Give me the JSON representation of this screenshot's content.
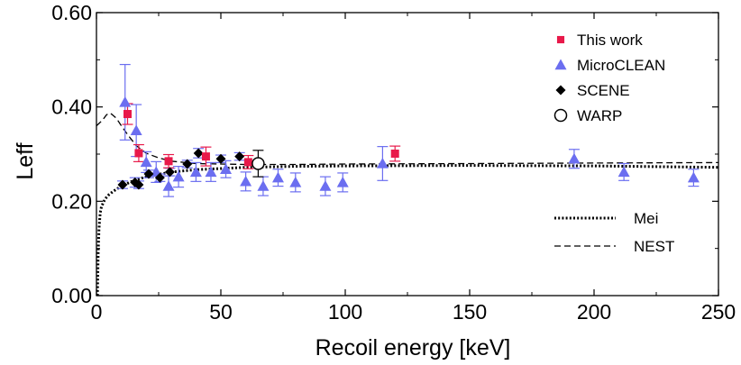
{
  "chart_data": {
    "type": "scatter",
    "title": "",
    "xlabel": "Recoil energy [keV]",
    "ylabel": "Leff",
    "xlim": [
      0,
      250
    ],
    "ylim": [
      0,
      0.6
    ],
    "x_ticks": [
      "0",
      "50",
      "100",
      "150",
      "200",
      "250"
    ],
    "y_ticks": [
      "0.00",
      "0.20",
      "0.40",
      "0.60"
    ],
    "grid": false,
    "legend_position": "top-right",
    "series": [
      {
        "name": "This work",
        "marker": "square",
        "color": "#e8194a",
        "error_color": "#e8194a",
        "points": [
          {
            "x": 12.5,
            "y": 0.385,
            "err": 0.022
          },
          {
            "x": 17.0,
            "y": 0.302,
            "err": 0.018
          },
          {
            "x": 29.0,
            "y": 0.285,
            "err": 0.014
          },
          {
            "x": 44.0,
            "y": 0.295,
            "err": 0.02
          },
          {
            "x": 61.0,
            "y": 0.283,
            "err": 0.014
          },
          {
            "x": 120.0,
            "y": 0.301,
            "err": 0.016
          }
        ]
      },
      {
        "name": "MicroCLEAN",
        "marker": "triangle",
        "color": "#6b6ef0",
        "error_color": "#6b6ef0",
        "points": [
          {
            "x": 11.5,
            "y": 0.41,
            "err": 0.08
          },
          {
            "x": 16.0,
            "y": 0.35,
            "err": 0.055
          },
          {
            "x": 20.0,
            "y": 0.283,
            "err": 0.022
          },
          {
            "x": 24.0,
            "y": 0.262,
            "err": 0.022
          },
          {
            "x": 29.0,
            "y": 0.232,
            "err": 0.022
          },
          {
            "x": 33.0,
            "y": 0.252,
            "err": 0.022
          },
          {
            "x": 40.0,
            "y": 0.262,
            "err": 0.02
          },
          {
            "x": 46.0,
            "y": 0.262,
            "err": 0.02
          },
          {
            "x": 52.0,
            "y": 0.268,
            "err": 0.018
          },
          {
            "x": 60.0,
            "y": 0.242,
            "err": 0.02
          },
          {
            "x": 67.0,
            "y": 0.232,
            "err": 0.02
          },
          {
            "x": 73.0,
            "y": 0.25,
            "err": 0.018
          },
          {
            "x": 80.0,
            "y": 0.24,
            "err": 0.02
          },
          {
            "x": 92.0,
            "y": 0.232,
            "err": 0.02
          },
          {
            "x": 99.0,
            "y": 0.24,
            "err": 0.02
          },
          {
            "x": 115.0,
            "y": 0.28,
            "err": 0.036
          },
          {
            "x": 192.0,
            "y": 0.29,
            "err": 0.02
          },
          {
            "x": 212.0,
            "y": 0.262,
            "err": 0.018
          },
          {
            "x": 240.0,
            "y": 0.25,
            "err": 0.018
          }
        ]
      },
      {
        "name": "SCENE",
        "marker": "diamond",
        "color": "#000000",
        "error_color": "#6b6ef0",
        "points": [
          {
            "x": 10.5,
            "y": 0.235,
            "err": 0.008
          },
          {
            "x": 15.5,
            "y": 0.24,
            "err": 0.01
          },
          {
            "x": 17.0,
            "y": 0.235,
            "err": 0.008
          },
          {
            "x": 21.0,
            "y": 0.258,
            "err": 0.008
          },
          {
            "x": 25.5,
            "y": 0.25,
            "err": 0.008
          },
          {
            "x": 29.5,
            "y": 0.262,
            "err": 0.008
          },
          {
            "x": 36.5,
            "y": 0.279,
            "err": 0.008
          },
          {
            "x": 41.0,
            "y": 0.302,
            "err": 0.01
          },
          {
            "x": 50.0,
            "y": 0.29,
            "err": 0.008
          },
          {
            "x": 57.5,
            "y": 0.295,
            "err": 0.008
          }
        ]
      },
      {
        "name": "WARP",
        "marker": "circle-open",
        "color": "#000000",
        "error_color": "#000000",
        "points": [
          {
            "x": 65.0,
            "y": 0.28,
            "err": 0.028
          }
        ]
      }
    ],
    "curves": [
      {
        "name": "Mei",
        "style": "dotted",
        "x": [
          0.4,
          0.7,
          1.0,
          1.5,
          2.0,
          3.0,
          4.0,
          5.0,
          7.0,
          10.0,
          15.0,
          20.0,
          30.0,
          40.0,
          60.0,
          80.0,
          100.0,
          150.0,
          200.0,
          250.0
        ],
        "y": [
          0.0,
          0.09,
          0.14,
          0.175,
          0.188,
          0.2,
          0.208,
          0.214,
          0.222,
          0.232,
          0.244,
          0.252,
          0.262,
          0.267,
          0.272,
          0.274,
          0.275,
          0.276,
          0.275,
          0.272
        ]
      },
      {
        "name": "NEST",
        "style": "dashed",
        "x": [
          0.0,
          1.0,
          2.0,
          3.0,
          4.0,
          5.0,
          6.0,
          8.0,
          10.0,
          13.0,
          16.0,
          20.0,
          25.0,
          30.0,
          40.0,
          60.0,
          80.0,
          100.0,
          150.0,
          200.0,
          250.0
        ],
        "y": [
          0.36,
          0.365,
          0.37,
          0.376,
          0.383,
          0.387,
          0.385,
          0.376,
          0.36,
          0.338,
          0.318,
          0.302,
          0.292,
          0.285,
          0.28,
          0.278,
          0.278,
          0.279,
          0.28,
          0.281,
          0.282
        ]
      }
    ]
  }
}
